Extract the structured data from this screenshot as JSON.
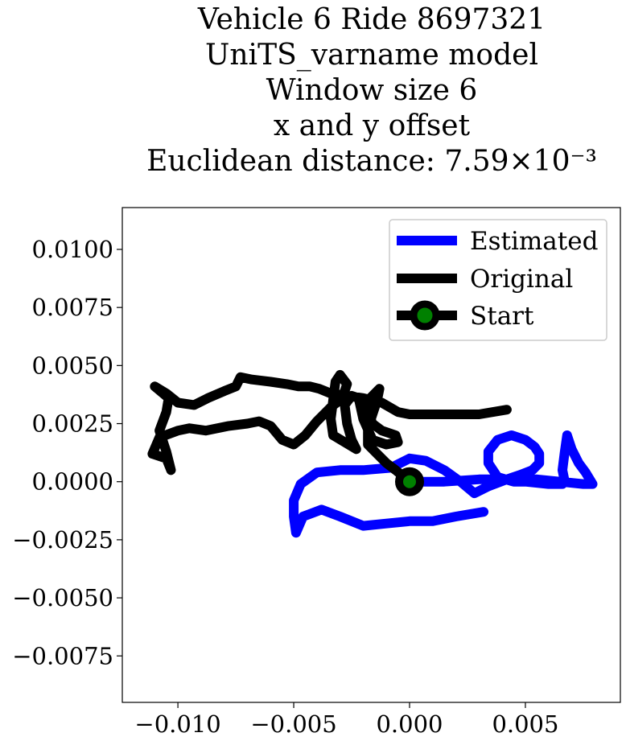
{
  "chart_data": {
    "type": "line",
    "title_lines": [
      "Vehicle 6 Ride 8697321",
      "UniTS_varname model",
      "Window size 6",
      "x and y offset",
      "Euclidean distance: 7.59×10⁻³"
    ],
    "xlabel": "",
    "ylabel": "",
    "xlim": [
      -0.0124,
      0.0091
    ],
    "ylim": [
      -0.0095,
      0.0118
    ],
    "x_ticks": [
      -0.01,
      -0.005,
      0.0,
      0.005
    ],
    "x_tick_labels": [
      "−0.010",
      "−0.005",
      "0.000",
      "0.005"
    ],
    "y_ticks": [
      0.01,
      0.0075,
      0.005,
      0.0025,
      0.0,
      -0.0025,
      -0.005,
      -0.0075
    ],
    "y_tick_labels": [
      "0.0100",
      "0.0075",
      "0.0050",
      "0.0025",
      "0.0000",
      "−0.0025",
      "−0.0050",
      "−0.0075"
    ],
    "grid": false,
    "legend_position": "top-right",
    "series": [
      {
        "name": "Estimated",
        "color": "#0000ff",
        "points": [
          [
            0.0,
            0.0
          ],
          [
            0.0015,
            0.0
          ],
          [
            0.003,
            0.0001
          ],
          [
            0.0045,
            0.0001
          ],
          [
            0.0055,
            0.0001
          ],
          [
            0.0065,
            0.0
          ],
          [
            0.0075,
            -0.0001
          ],
          [
            0.0079,
            -0.0001
          ],
          [
            0.0076,
            0.0004
          ],
          [
            0.0073,
            0.0008
          ],
          [
            0.007,
            0.0014
          ],
          [
            0.0068,
            0.002
          ],
          [
            0.0067,
            0.0013
          ],
          [
            0.0066,
            0.0005
          ],
          [
            0.0067,
            0.0
          ],
          [
            0.0066,
            -0.0001
          ],
          [
            0.006,
            -0.0001
          ],
          [
            0.005,
            0.0
          ],
          [
            0.0045,
            0.0
          ],
          [
            0.0038,
            0.0002
          ],
          [
            0.0034,
            0.0008
          ],
          [
            0.0034,
            0.0013
          ],
          [
            0.0038,
            0.0018
          ],
          [
            0.0044,
            0.002
          ],
          [
            0.005,
            0.0018
          ],
          [
            0.0054,
            0.0015
          ],
          [
            0.0056,
            0.0012
          ],
          [
            0.0056,
            0.0008
          ],
          [
            0.0053,
            0.0005
          ],
          [
            0.0048,
            0.0003
          ],
          [
            0.0042,
            0.0001
          ],
          [
            0.0034,
            -0.0002
          ],
          [
            0.0028,
            -0.0005
          ],
          [
            0.0022,
            0.0
          ],
          [
            0.0015,
            0.0005
          ],
          [
            0.0007,
            0.0009
          ],
          [
            0.0,
            0.001
          ],
          [
            -0.0008,
            0.0006
          ],
          [
            -0.002,
            0.0005
          ],
          [
            -0.003,
            0.0005
          ],
          [
            -0.004,
            0.0004
          ],
          [
            -0.0047,
            -0.0001
          ],
          [
            -0.005,
            -0.0008
          ],
          [
            -0.005,
            -0.0015
          ],
          [
            -0.0049,
            -0.0022
          ],
          [
            -0.0046,
            -0.0015
          ],
          [
            -0.0038,
            -0.0012
          ],
          [
            -0.003,
            -0.0015
          ],
          [
            -0.002,
            -0.0019
          ],
          [
            -0.001,
            -0.0018
          ],
          [
            0.0,
            -0.0017
          ],
          [
            0.001,
            -0.0017
          ],
          [
            0.002,
            -0.0015
          ],
          [
            0.0032,
            -0.0013
          ]
        ]
      },
      {
        "name": "Original",
        "color": "#000000",
        "points": [
          [
            0.0,
            0.0
          ],
          [
            -0.0006,
            0.0005
          ],
          [
            -0.001,
            0.0008
          ],
          [
            -0.0014,
            0.0012
          ],
          [
            -0.0018,
            0.0016
          ],
          [
            -0.0018,
            0.0023
          ],
          [
            -0.0016,
            0.0029
          ],
          [
            -0.0014,
            0.0035
          ],
          [
            -0.0013,
            0.004
          ],
          [
            -0.0017,
            0.0036
          ],
          [
            -0.0018,
            0.003
          ],
          [
            -0.0016,
            0.0025
          ],
          [
            -0.0012,
            0.0022
          ],
          [
            -0.0006,
            0.002
          ],
          [
            -0.0005,
            0.0017
          ],
          [
            -0.001,
            0.0016
          ],
          [
            -0.0016,
            0.0018
          ],
          [
            -0.002,
            0.0027
          ],
          [
            -0.0022,
            0.0036
          ],
          [
            -0.0025,
            0.0037
          ],
          [
            -0.0028,
            0.0033
          ],
          [
            -0.0027,
            0.0025
          ],
          [
            -0.0025,
            0.0018
          ],
          [
            -0.0023,
            0.0014
          ],
          [
            -0.0028,
            0.0017
          ],
          [
            -0.0033,
            0.002
          ],
          [
            -0.0034,
            0.0027
          ],
          [
            -0.0033,
            0.0035
          ],
          [
            -0.0032,
            0.0043
          ],
          [
            -0.003,
            0.0046
          ],
          [
            -0.0027,
            0.0042
          ],
          [
            -0.0029,
            0.0036
          ],
          [
            -0.0034,
            0.0032
          ],
          [
            -0.004,
            0.0026
          ],
          [
            -0.0045,
            0.002
          ],
          [
            -0.005,
            0.0016
          ],
          [
            -0.0055,
            0.0018
          ],
          [
            -0.006,
            0.0024
          ],
          [
            -0.0065,
            0.0026
          ],
          [
            -0.007,
            0.0025
          ],
          [
            -0.0078,
            0.0024
          ],
          [
            -0.0088,
            0.0022
          ],
          [
            -0.0095,
            0.0023
          ],
          [
            -0.01,
            0.0022
          ],
          [
            -0.0108,
            0.0019
          ],
          [
            -0.0111,
            0.0012
          ],
          [
            -0.0105,
            0.001
          ],
          [
            -0.0103,
            0.0005
          ],
          [
            -0.0105,
            0.0013
          ],
          [
            -0.0108,
            0.0022
          ],
          [
            -0.0105,
            0.003
          ],
          [
            -0.0104,
            0.0036
          ],
          [
            -0.011,
            0.0041
          ],
          [
            -0.0105,
            0.0038
          ],
          [
            -0.01,
            0.0034
          ],
          [
            -0.0093,
            0.0033
          ],
          [
            -0.0087,
            0.0036
          ],
          [
            -0.008,
            0.0039
          ],
          [
            -0.0075,
            0.0041
          ],
          [
            -0.0073,
            0.0045
          ],
          [
            -0.0068,
            0.0044
          ],
          [
            -0.006,
            0.0043
          ],
          [
            -0.0053,
            0.0042
          ],
          [
            -0.0048,
            0.0041
          ],
          [
            -0.0043,
            0.0041
          ],
          [
            -0.0039,
            0.004
          ],
          [
            -0.0034,
            0.0038
          ],
          [
            -0.0027,
            0.0037
          ],
          [
            -0.002,
            0.0036
          ],
          [
            -0.0012,
            0.0034
          ],
          [
            -0.0005,
            0.003
          ],
          [
            0.0,
            0.0029
          ],
          [
            0.001,
            0.0029
          ],
          [
            0.002,
            0.0029
          ],
          [
            0.003,
            0.0029
          ],
          [
            0.0042,
            0.0031
          ]
        ]
      }
    ],
    "start": {
      "name": "Start",
      "x": 0.0,
      "y": 0.0,
      "marker_color": "#008000",
      "edge_color": "#000000"
    }
  }
}
